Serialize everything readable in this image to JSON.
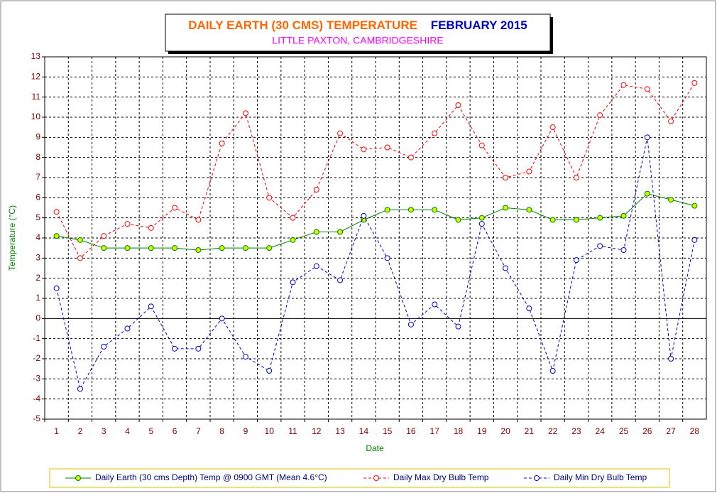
{
  "chart_data": {
    "type": "line",
    "title": "DAILY EARTH (30 CMS) TEMPERATURE",
    "title_period": "FEBRUARY 2015",
    "subtitle": "LITTLE PAXTON, CAMBRIDGESHIRE",
    "y_label": "Temperature (°C)",
    "x_label": "Date",
    "categories": [
      "1",
      "2",
      "3",
      "4",
      "5",
      "6",
      "7",
      "8",
      "9",
      "10",
      "11",
      "12",
      "13",
      "14",
      "15",
      "16",
      "17",
      "18",
      "19",
      "20",
      "21",
      "22",
      "23",
      "24",
      "25",
      "26",
      "27",
      "28"
    ],
    "ylim": [
      -5,
      13
    ],
    "yticks": [
      -5,
      -4,
      -3,
      -2,
      -1,
      0,
      1,
      2,
      3,
      4,
      5,
      6,
      7,
      8,
      9,
      10,
      11,
      12,
      13
    ],
    "grid": true,
    "legend": "bottom",
    "series": [
      {
        "name": "Daily Earth (30 cms Depth) Temp @ 0900 GMT (Mean 4.6°C)",
        "color": "#008000",
        "marker_fill": "#ccff00",
        "dashed": false,
        "values": [
          4.1,
          3.9,
          3.5,
          3.5,
          3.5,
          3.5,
          3.4,
          3.5,
          3.5,
          3.5,
          3.9,
          4.3,
          4.3,
          4.9,
          5.4,
          5.4,
          5.4,
          4.9,
          5.0,
          5.5,
          5.4,
          4.9,
          4.9,
          5.0,
          5.1,
          6.2,
          5.9,
          5.6
        ]
      },
      {
        "name": "Daily Max Dry Bulb Temp",
        "color": "#ff0000",
        "marker_fill": "#ffffff",
        "dashed": true,
        "values": [
          5.3,
          3.0,
          4.1,
          4.7,
          4.5,
          5.5,
          4.9,
          8.7,
          10.2,
          6.0,
          5.0,
          6.4,
          9.2,
          8.4,
          8.5,
          8.0,
          9.2,
          10.6,
          8.6,
          7.0,
          7.3,
          9.5,
          7.0,
          10.1,
          11.6,
          11.4,
          9.8,
          11.7
        ]
      },
      {
        "name": "Daily Min Dry Bulb Temp",
        "color": "#0000cc",
        "marker_fill": "#ffffff",
        "dashed": true,
        "values": [
          1.5,
          -3.5,
          -1.4,
          -0.5,
          0.6,
          -1.5,
          -1.5,
          0.0,
          -1.9,
          -2.6,
          1.8,
          2.6,
          1.9,
          5.1,
          3.0,
          -0.3,
          0.7,
          -0.4,
          4.7,
          2.5,
          0.5,
          -2.6,
          2.9,
          3.6,
          3.4,
          9.0,
          -2.0,
          3.9
        ]
      }
    ]
  }
}
